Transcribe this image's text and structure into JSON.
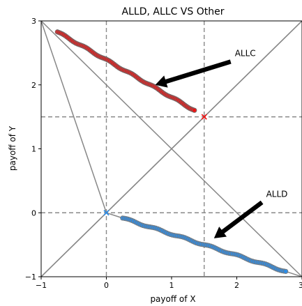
{
  "chart_data": {
    "type": "scatter",
    "title": "ALLD, ALLC VS Other",
    "xlabel": "payoff of X",
    "ylabel": "payoff of Y",
    "xlim": [
      -1,
      3
    ],
    "ylim": [
      -1,
      3
    ],
    "xticks": [
      -1,
      0,
      1,
      2,
      3
    ],
    "yticks": [
      -1,
      0,
      1,
      2,
      3
    ],
    "xtick_labels": [
      "−1",
      "0",
      "1",
      "2",
      "3"
    ],
    "ytick_labels": [
      "−1",
      "0",
      "1",
      "2",
      "3"
    ],
    "grid": false,
    "reference_lines": {
      "color": "#888888",
      "segments": [
        {
          "from": [
            -1,
            3
          ],
          "to": [
            3,
            -1
          ]
        },
        {
          "from": [
            -1,
            -1
          ],
          "to": [
            3,
            3
          ]
        },
        {
          "from": [
            -1,
            3
          ],
          "to": [
            0,
            0
          ]
        },
        {
          "from": [
            0,
            0
          ],
          "to": [
            3,
            -1
          ]
        },
        {
          "from": [
            -1,
            -1
          ],
          "to": [
            3,
            3
          ]
        }
      ],
      "dashed_vertical": [
        0,
        1.5
      ],
      "dashed_horizontal": [
        0,
        1.5
      ]
    },
    "series": [
      {
        "label": "ALLC cluster",
        "color": "#ee1111",
        "edge_color": "#6e6e6e",
        "x_range": [
          -0.75,
          1.35
        ],
        "line": {
          "slope": -0.5833,
          "intercept": 2.39
        }
      },
      {
        "label": "ALLD cluster",
        "color": "#2a8ce8",
        "edge_color": "#7a7a7a",
        "x_range": [
          0.25,
          2.75
        ],
        "line": {
          "slope": -0.3333,
          "intercept": 0.0
        }
      }
    ],
    "marked_points": [
      {
        "x": 1.5,
        "y": 1.5,
        "color": "#ee1111",
        "marker": "x"
      },
      {
        "x": 0,
        "y": 0,
        "color": "#2a8ce8",
        "marker": "x"
      }
    ],
    "annotations": [
      {
        "text": "ALLC",
        "text_xy": [
          1.97,
          2.45
        ],
        "arrow_to": [
          0.75,
          2.0
        ]
      },
      {
        "text": "ALLD",
        "text_xy": [
          2.45,
          0.25
        ],
        "arrow_to": [
          1.65,
          -0.4
        ]
      }
    ]
  }
}
